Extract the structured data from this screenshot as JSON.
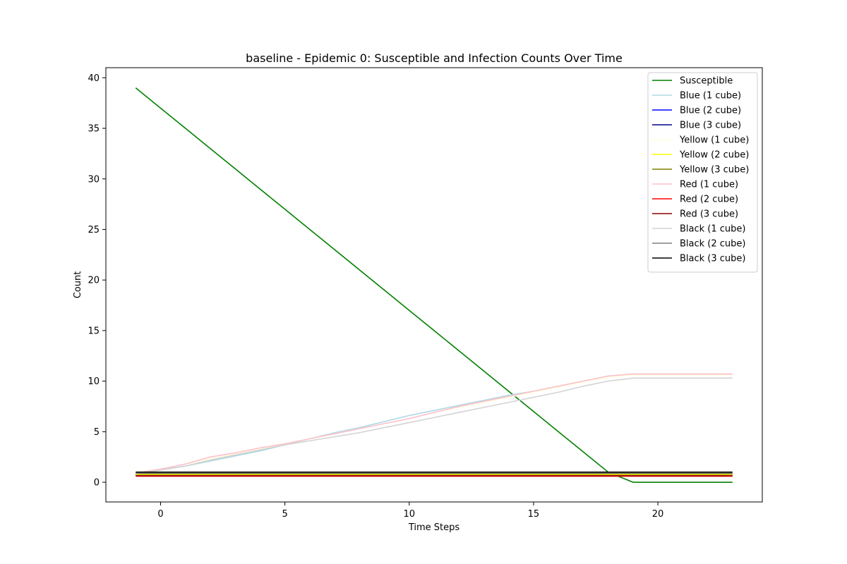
{
  "chart_data": {
    "type": "line",
    "title": "baseline - Epidemic 0: Susceptible and Infection Counts Over Time",
    "xlabel": "Time Steps",
    "ylabel": "Count",
    "xlim": [
      -2.2,
      24.2
    ],
    "ylim": [
      -1.95,
      41.0
    ],
    "xticks": [
      0,
      5,
      10,
      15,
      20
    ],
    "yticks": [
      0,
      5,
      10,
      15,
      20,
      25,
      30,
      35,
      40
    ],
    "grid": false,
    "legend_position": "top-right",
    "x": [
      -1,
      0,
      1,
      2,
      3,
      4,
      5,
      6,
      7,
      8,
      9,
      10,
      11,
      12,
      13,
      14,
      15,
      16,
      17,
      18,
      19,
      20,
      21,
      22,
      23
    ],
    "series": [
      {
        "name": "Susceptible",
        "color": "#008000",
        "values": [
          39,
          37,
          35,
          33,
          31,
          29,
          27,
          25,
          23,
          21,
          19,
          17,
          15,
          13,
          11,
          9,
          7,
          5,
          3,
          1,
          0,
          0,
          0,
          0,
          0
        ]
      },
      {
        "name": "Blue (1 cube)",
        "color": "#add8e6",
        "values": [
          0.95,
          1.25,
          1.6,
          2.1,
          2.6,
          3.1,
          3.7,
          4.3,
          4.9,
          5.4,
          6.0,
          6.6,
          7.1,
          7.6,
          8.1,
          8.6,
          9.0,
          9.5,
          10.0,
          10.5,
          10.7,
          10.7,
          10.7,
          10.7,
          10.7
        ]
      },
      {
        "name": "Blue (2 cube)",
        "color": "#0000ff",
        "values": [
          0.7,
          0.7,
          0.7,
          0.7,
          0.7,
          0.7,
          0.7,
          0.7,
          0.7,
          0.7,
          0.7,
          0.7,
          0.7,
          0.7,
          0.7,
          0.7,
          0.7,
          0.7,
          0.7,
          0.7,
          0.7,
          0.7,
          0.7,
          0.7,
          0.7
        ]
      },
      {
        "name": "Blue (3 cube)",
        "color": "#00008b",
        "values": [
          0.8,
          0.8,
          0.8,
          0.8,
          0.8,
          0.8,
          0.8,
          0.8,
          0.8,
          0.8,
          0.8,
          0.8,
          0.8,
          0.8,
          0.8,
          0.8,
          0.8,
          0.8,
          0.8,
          0.8,
          0.8,
          0.8,
          0.8,
          0.8,
          0.8
        ]
      },
      {
        "name": "Yellow (1 cube)",
        "color": "#ffffe0",
        "values": [
          1.0,
          1.3,
          1.8,
          2.3,
          2.8,
          3.3,
          3.8,
          4.3,
          4.8,
          5.3,
          5.8,
          6.3,
          6.9,
          7.4,
          7.9,
          8.4,
          8.9,
          9.4,
          9.9,
          10.4,
          10.6,
          10.6,
          10.6,
          10.6,
          10.6
        ]
      },
      {
        "name": "Yellow (2 cube)",
        "color": "#ffff00",
        "values": [
          0.75,
          0.75,
          0.75,
          0.75,
          0.75,
          0.75,
          0.75,
          0.75,
          0.75,
          0.75,
          0.75,
          0.75,
          0.75,
          0.75,
          0.75,
          0.75,
          0.75,
          0.75,
          0.75,
          0.75,
          0.75,
          0.75,
          0.75,
          0.75,
          0.75
        ]
      },
      {
        "name": "Yellow (3 cube)",
        "color": "#808000",
        "values": [
          0.85,
          0.85,
          0.85,
          0.85,
          0.85,
          0.85,
          0.85,
          0.85,
          0.85,
          0.85,
          0.85,
          0.85,
          0.85,
          0.85,
          0.85,
          0.85,
          0.85,
          0.85,
          0.85,
          0.85,
          0.85,
          0.85,
          0.85,
          0.85,
          0.85
        ]
      },
      {
        "name": "Red (1 cube)",
        "color": "#ffc0cb",
        "values": [
          0.9,
          1.3,
          1.8,
          2.5,
          2.9,
          3.4,
          3.8,
          4.3,
          4.8,
          5.3,
          5.8,
          6.3,
          6.9,
          7.5,
          8.0,
          8.5,
          9.0,
          9.5,
          10.0,
          10.5,
          10.7,
          10.7,
          10.7,
          10.7,
          10.7
        ]
      },
      {
        "name": "Red (2 cube)",
        "color": "#ff0000",
        "values": [
          0.6,
          0.6,
          0.6,
          0.6,
          0.6,
          0.6,
          0.6,
          0.6,
          0.6,
          0.6,
          0.6,
          0.6,
          0.6,
          0.6,
          0.6,
          0.6,
          0.6,
          0.6,
          0.6,
          0.6,
          0.6,
          0.6,
          0.6,
          0.6,
          0.6
        ]
      },
      {
        "name": "Red (3 cube)",
        "color": "#8b0000",
        "values": [
          0.65,
          0.65,
          0.65,
          0.65,
          0.65,
          0.65,
          0.65,
          0.65,
          0.65,
          0.65,
          0.65,
          0.65,
          0.65,
          0.65,
          0.65,
          0.65,
          0.65,
          0.65,
          0.65,
          0.65,
          0.65,
          0.65,
          0.65,
          0.65,
          0.65
        ]
      },
      {
        "name": "Black (1 cube)",
        "color": "#d3d3d3",
        "values": [
          0.85,
          1.2,
          1.6,
          2.2,
          2.7,
          3.2,
          3.7,
          4.1,
          4.5,
          4.9,
          5.4,
          5.9,
          6.4,
          6.9,
          7.4,
          7.9,
          8.4,
          8.9,
          9.5,
          10.0,
          10.3,
          10.3,
          10.3,
          10.3,
          10.3
        ]
      },
      {
        "name": "Black (2 cube)",
        "color": "#808080",
        "values": [
          0.9,
          0.9,
          0.9,
          0.9,
          0.9,
          0.9,
          0.9,
          0.9,
          0.9,
          0.9,
          0.9,
          0.9,
          0.9,
          0.9,
          0.9,
          0.9,
          0.9,
          0.9,
          0.9,
          0.9,
          0.9,
          0.9,
          0.9,
          0.9,
          0.9
        ]
      },
      {
        "name": "Black (3 cube)",
        "color": "#000000",
        "values": [
          1.0,
          1.0,
          1.0,
          1.0,
          1.0,
          1.0,
          1.0,
          1.0,
          1.0,
          1.0,
          1.0,
          1.0,
          1.0,
          1.0,
          1.0,
          1.0,
          1.0,
          1.0,
          1.0,
          1.0,
          1.0,
          1.0,
          1.0,
          1.0,
          1.0
        ]
      }
    ]
  }
}
